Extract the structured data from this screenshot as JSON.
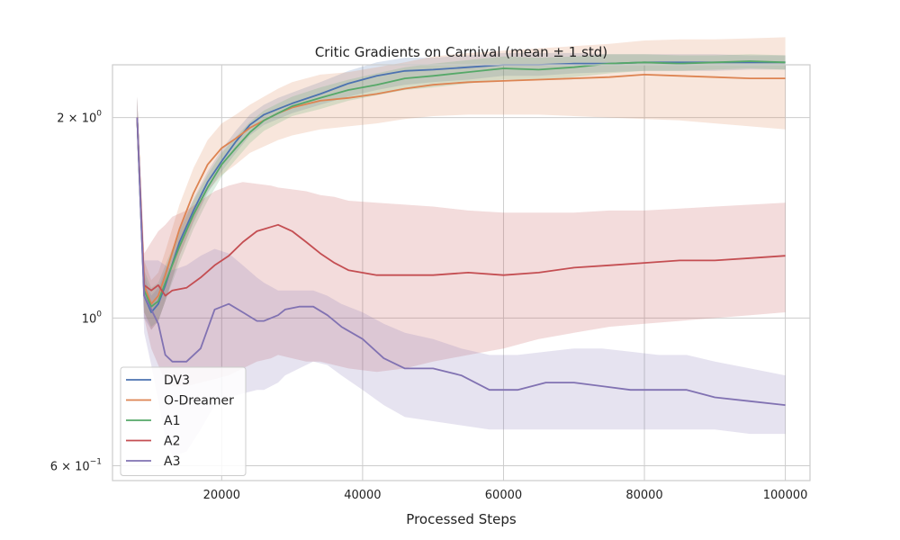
{
  "chart_data": {
    "type": "line",
    "title": "Critic Gradients on Carnival (mean ± 1 std)",
    "xlabel": "Processed Steps",
    "ylabel": "",
    "y_scale": "log",
    "xlim": [
      4500,
      103500
    ],
    "ylim": [
      0.57,
      2.4
    ],
    "grid": true,
    "legend_position": "lower-left",
    "x_ticks": [
      20000,
      40000,
      60000,
      80000,
      100000
    ],
    "x_tick_labels": [
      "20000",
      "40000",
      "60000",
      "80000",
      "100000"
    ],
    "y_ticks": [
      0.6,
      1.0,
      2.0
    ],
    "y_tick_labels": [
      {
        "base": "6 × 10",
        "exp": "−1"
      },
      {
        "base": "10",
        "exp": "0"
      },
      {
        "base": "2 × 10",
        "exp": "0"
      }
    ],
    "series": [
      {
        "name": "DV3",
        "color": "#4c72b0",
        "x": [
          8000,
          9000,
          10000,
          11000,
          12000,
          14000,
          16000,
          18000,
          20000,
          22000,
          24000,
          26000,
          28000,
          30000,
          34000,
          38000,
          42000,
          46000,
          50000,
          55000,
          60000,
          65000,
          70000,
          75000,
          80000,
          85000,
          90000,
          95000,
          100000
        ],
        "y": [
          2.0,
          1.08,
          1.02,
          1.05,
          1.12,
          1.3,
          1.45,
          1.6,
          1.72,
          1.84,
          1.95,
          2.02,
          2.06,
          2.1,
          2.17,
          2.25,
          2.31,
          2.35,
          2.36,
          2.38,
          2.4,
          2.4,
          2.41,
          2.41,
          2.42,
          2.42,
          2.42,
          2.42,
          2.42
        ],
        "std_low": [
          1.85,
          1.0,
          0.96,
          0.99,
          1.06,
          1.24,
          1.39,
          1.54,
          1.66,
          1.77,
          1.88,
          1.95,
          1.99,
          2.03,
          2.09,
          2.15,
          2.2,
          2.24,
          2.26,
          2.28,
          2.31,
          2.31,
          2.33,
          2.34,
          2.35,
          2.35,
          2.35,
          2.36,
          2.36
        ],
        "std_high": [
          2.15,
          1.16,
          1.08,
          1.11,
          1.18,
          1.36,
          1.51,
          1.66,
          1.79,
          1.91,
          2.02,
          2.09,
          2.14,
          2.18,
          2.26,
          2.35,
          2.42,
          2.46,
          2.46,
          2.48,
          2.5,
          2.5,
          2.5,
          2.49,
          2.49,
          2.49,
          2.49,
          2.48,
          2.48
        ]
      },
      {
        "name": "O-Dreamer",
        "color": "#dd8452",
        "x": [
          8000,
          9000,
          10000,
          11000,
          12000,
          14000,
          16000,
          18000,
          20000,
          22000,
          24000,
          26000,
          28000,
          30000,
          34000,
          38000,
          42000,
          46000,
          50000,
          55000,
          60000,
          65000,
          70000,
          75000,
          80000,
          85000,
          90000,
          95000,
          100000
        ],
        "y": [
          2.0,
          1.12,
          1.05,
          1.08,
          1.16,
          1.36,
          1.54,
          1.7,
          1.8,
          1.86,
          1.93,
          1.98,
          2.03,
          2.07,
          2.12,
          2.14,
          2.17,
          2.21,
          2.24,
          2.26,
          2.27,
          2.28,
          2.29,
          2.3,
          2.32,
          2.31,
          2.3,
          2.29,
          2.29
        ],
        "std_low": [
          1.85,
          1.02,
          0.96,
          0.99,
          1.06,
          1.24,
          1.4,
          1.55,
          1.64,
          1.7,
          1.77,
          1.81,
          1.85,
          1.88,
          1.92,
          1.94,
          1.96,
          1.99,
          2.01,
          2.02,
          2.02,
          2.02,
          2.01,
          2.0,
          1.99,
          1.98,
          1.96,
          1.94,
          1.92
        ],
        "std_high": [
          2.15,
          1.22,
          1.14,
          1.17,
          1.26,
          1.48,
          1.68,
          1.85,
          1.96,
          2.02,
          2.09,
          2.15,
          2.21,
          2.26,
          2.32,
          2.34,
          2.38,
          2.42,
          2.47,
          2.5,
          2.52,
          2.54,
          2.56,
          2.58,
          2.61,
          2.62,
          2.62,
          2.63,
          2.64
        ]
      },
      {
        "name": "A1",
        "color": "#55a868",
        "x": [
          8000,
          9000,
          10000,
          11000,
          12000,
          14000,
          16000,
          18000,
          20000,
          22000,
          24000,
          26000,
          28000,
          30000,
          34000,
          38000,
          42000,
          46000,
          50000,
          55000,
          60000,
          65000,
          70000,
          75000,
          80000,
          85000,
          90000,
          95000,
          100000
        ],
        "y": [
          2.0,
          1.1,
          1.04,
          1.06,
          1.13,
          1.28,
          1.43,
          1.57,
          1.7,
          1.8,
          1.9,
          1.98,
          2.03,
          2.08,
          2.14,
          2.2,
          2.24,
          2.29,
          2.31,
          2.34,
          2.37,
          2.36,
          2.38,
          2.41,
          2.42,
          2.41,
          2.42,
          2.43,
          2.42
        ],
        "std_low": [
          1.85,
          1.02,
          0.97,
          0.99,
          1.06,
          1.21,
          1.36,
          1.5,
          1.63,
          1.73,
          1.83,
          1.91,
          1.96,
          2.01,
          2.06,
          2.12,
          2.16,
          2.2,
          2.22,
          2.25,
          2.28,
          2.28,
          2.3,
          2.33,
          2.35,
          2.35,
          2.36,
          2.37,
          2.36
        ],
        "std_high": [
          2.15,
          1.18,
          1.11,
          1.13,
          1.2,
          1.35,
          1.5,
          1.64,
          1.77,
          1.87,
          1.97,
          2.05,
          2.1,
          2.15,
          2.22,
          2.28,
          2.33,
          2.38,
          2.41,
          2.44,
          2.47,
          2.46,
          2.47,
          2.49,
          2.49,
          2.48,
          2.48,
          2.49,
          2.48
        ]
      },
      {
        "name": "A2",
        "color": "#c44e52",
        "x": [
          8000,
          9000,
          10000,
          11000,
          12000,
          13000,
          15000,
          17000,
          19000,
          21000,
          23000,
          25000,
          27000,
          28000,
          30000,
          32000,
          34000,
          36000,
          38000,
          42000,
          46000,
          50000,
          55000,
          60000,
          65000,
          70000,
          75000,
          80000,
          85000,
          90000,
          95000,
          100000
        ],
        "y": [
          2.0,
          1.12,
          1.1,
          1.12,
          1.08,
          1.1,
          1.11,
          1.15,
          1.2,
          1.24,
          1.3,
          1.35,
          1.37,
          1.38,
          1.35,
          1.3,
          1.25,
          1.21,
          1.18,
          1.16,
          1.16,
          1.16,
          1.17,
          1.16,
          1.17,
          1.19,
          1.2,
          1.21,
          1.22,
          1.22,
          1.23,
          1.24
        ],
        "std_low": [
          1.85,
          1.0,
          0.9,
          0.85,
          0.8,
          0.79,
          0.79,
          0.8,
          0.81,
          0.82,
          0.84,
          0.86,
          0.87,
          0.88,
          0.87,
          0.86,
          0.86,
          0.85,
          0.84,
          0.83,
          0.84,
          0.86,
          0.88,
          0.9,
          0.93,
          0.95,
          0.97,
          0.98,
          0.99,
          1.0,
          1.01,
          1.02
        ],
        "std_high": [
          2.15,
          1.25,
          1.3,
          1.35,
          1.38,
          1.42,
          1.45,
          1.5,
          1.55,
          1.58,
          1.6,
          1.59,
          1.58,
          1.57,
          1.56,
          1.55,
          1.53,
          1.52,
          1.5,
          1.49,
          1.48,
          1.47,
          1.45,
          1.44,
          1.44,
          1.44,
          1.45,
          1.45,
          1.46,
          1.47,
          1.48,
          1.49
        ]
      },
      {
        "name": "A3",
        "color": "#8172b2",
        "x": [
          8000,
          9000,
          10000,
          11000,
          12000,
          13000,
          15000,
          17000,
          19000,
          21000,
          23000,
          25000,
          26000,
          28000,
          29000,
          31000,
          33000,
          35000,
          37000,
          40000,
          43000,
          46000,
          50000,
          54000,
          58000,
          62000,
          66000,
          70000,
          74000,
          78000,
          82000,
          86000,
          90000,
          95000,
          100000
        ],
        "y": [
          2.0,
          1.08,
          1.03,
          0.98,
          0.88,
          0.86,
          0.86,
          0.9,
          1.03,
          1.05,
          1.02,
          0.99,
          0.99,
          1.01,
          1.03,
          1.04,
          1.04,
          1.01,
          0.97,
          0.93,
          0.87,
          0.84,
          0.84,
          0.82,
          0.78,
          0.78,
          0.8,
          0.8,
          0.79,
          0.78,
          0.78,
          0.78,
          0.76,
          0.75,
          0.74
        ],
        "std_low": [
          1.85,
          0.95,
          0.85,
          0.75,
          0.66,
          0.62,
          0.63,
          0.68,
          0.74,
          0.76,
          0.77,
          0.78,
          0.78,
          0.8,
          0.82,
          0.84,
          0.86,
          0.85,
          0.82,
          0.78,
          0.74,
          0.71,
          0.7,
          0.69,
          0.68,
          0.68,
          0.68,
          0.68,
          0.68,
          0.68,
          0.68,
          0.68,
          0.68,
          0.67,
          0.67
        ],
        "std_high": [
          2.15,
          1.22,
          1.22,
          1.22,
          1.2,
          1.18,
          1.2,
          1.24,
          1.27,
          1.25,
          1.2,
          1.15,
          1.13,
          1.1,
          1.1,
          1.1,
          1.1,
          1.08,
          1.05,
          1.02,
          0.98,
          0.95,
          0.93,
          0.9,
          0.88,
          0.88,
          0.89,
          0.9,
          0.9,
          0.89,
          0.88,
          0.88,
          0.86,
          0.84,
          0.82
        ]
      }
    ]
  }
}
